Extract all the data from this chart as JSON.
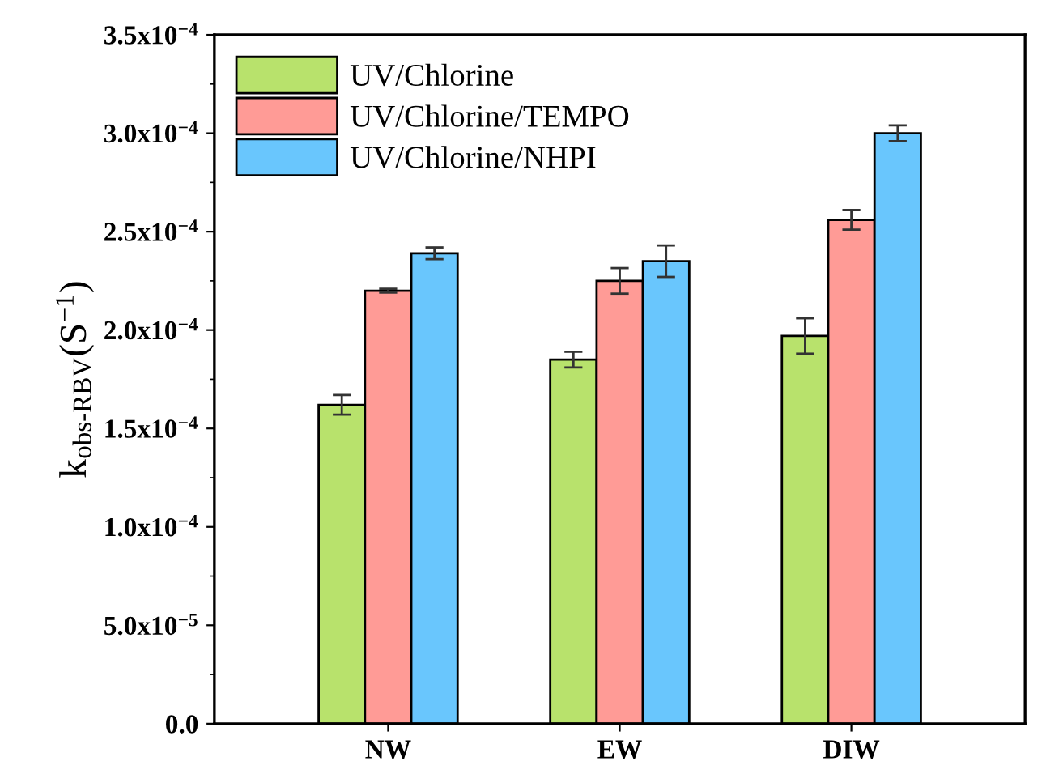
{
  "chart_data": {
    "type": "bar",
    "categories": [
      "NW",
      "EW",
      "DIW"
    ],
    "ylabel": "k$_{obs‐RBV}$(S$^{−1}$)",
    "series": [
      {
        "name": "UV/Chlorine",
        "color": "#b8e26c",
        "values": [
          0.000162,
          0.000185,
          0.000197
        ],
        "errors": [
          5e-06,
          4e-06,
          9e-06
        ]
      },
      {
        "name": "UV/Chlorine/TEMPO",
        "color": "#ff9b96",
        "values": [
          0.00022,
          0.000225,
          0.000256
        ],
        "errors": [
          1e-06,
          6.5e-06,
          5e-06
        ]
      },
      {
        "name": "UV/Chlorine/NHPI",
        "color": "#69c6fd",
        "values": [
          0.000239,
          0.000235,
          0.0003
        ],
        "errors": [
          3e-06,
          8e-06,
          4e-06
        ]
      }
    ],
    "ylim": [
      0,
      0.00035
    ],
    "yticks": [
      {
        "value": 0,
        "label": "0.0"
      },
      {
        "value": 5e-05,
        "label": "5.0x10$^{−5}$"
      },
      {
        "value": 0.0001,
        "label": "1.0x10$^{−4}$"
      },
      {
        "value": 0.00015,
        "label": "1.5x10$^{−4}$"
      },
      {
        "value": 0.0002,
        "label": "2.0x10$^{−4}$"
      },
      {
        "value": 0.00025,
        "label": "2.5x10$^{−4}$"
      },
      {
        "value": 0.0003,
        "label": "3.0x10$^{−4}$"
      },
      {
        "value": 0.00035,
        "label": "3.5x10$^{−4}$"
      }
    ],
    "grid": false,
    "legend": "top left"
  }
}
